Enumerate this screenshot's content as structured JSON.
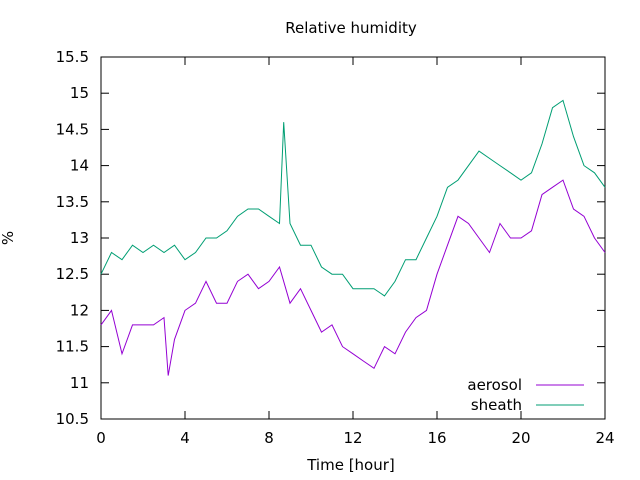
{
  "chart_data": {
    "type": "line",
    "title": "Relative humidity",
    "xlabel": "Time [hour]",
    "ylabel": "%",
    "xlim": [
      0,
      24
    ],
    "ylim": [
      10.5,
      15.5
    ],
    "x_ticks": [
      0,
      4,
      8,
      12,
      16,
      20,
      24
    ],
    "y_ticks": [
      10.5,
      11,
      11.5,
      12,
      12.5,
      13,
      13.5,
      14,
      14.5,
      15,
      15.5
    ],
    "grid": false,
    "legend_position": "bottom-right",
    "series": [
      {
        "name": "aerosol",
        "color": "#9400d3",
        "x": [
          0,
          0.5,
          1,
          1.5,
          2,
          2.5,
          3,
          3.2,
          3.5,
          4,
          4.5,
          5,
          5.5,
          6,
          6.5,
          7,
          7.5,
          8,
          8.5,
          9,
          9.5,
          10,
          10.5,
          11,
          11.5,
          12,
          12.5,
          13,
          13.5,
          14,
          14.5,
          15,
          15.5,
          16,
          16.5,
          17,
          17.5,
          18,
          18.5,
          19,
          19.5,
          20,
          20.5,
          21,
          21.5,
          22,
          22.5,
          23,
          23.5,
          24
        ],
        "y": [
          11.8,
          12.0,
          11.4,
          11.8,
          11.8,
          11.8,
          11.9,
          11.1,
          11.6,
          12.0,
          12.1,
          12.4,
          12.1,
          12.1,
          12.4,
          12.5,
          12.3,
          12.4,
          12.6,
          12.1,
          12.3,
          12.0,
          11.7,
          11.8,
          11.5,
          11.4,
          11.3,
          11.2,
          11.5,
          11.4,
          11.7,
          11.9,
          12.0,
          12.5,
          12.9,
          13.3,
          13.2,
          13.0,
          12.8,
          13.2,
          13.0,
          13.0,
          13.1,
          13.6,
          13.7,
          13.8,
          13.4,
          13.3,
          13.0,
          12.8
        ]
      },
      {
        "name": "sheath",
        "color": "#009e73",
        "x": [
          0,
          0.5,
          1,
          1.5,
          2,
          2.5,
          3,
          3.5,
          4,
          4.5,
          5,
          5.5,
          6,
          6.5,
          7,
          7.5,
          8,
          8.5,
          8.7,
          9,
          9.5,
          10,
          10.5,
          11,
          11.5,
          12,
          12.5,
          13,
          13.5,
          14,
          14.5,
          15,
          15.5,
          16,
          16.5,
          17,
          17.5,
          18,
          18.5,
          19,
          19.5,
          20,
          20.5,
          21,
          21.5,
          22,
          22.5,
          23,
          23.5,
          24
        ],
        "y": [
          12.5,
          12.8,
          12.7,
          12.9,
          12.8,
          12.9,
          12.8,
          12.9,
          12.7,
          12.8,
          13.0,
          13.0,
          13.1,
          13.3,
          13.4,
          13.4,
          13.3,
          13.2,
          14.6,
          13.2,
          12.9,
          12.9,
          12.6,
          12.5,
          12.5,
          12.3,
          12.3,
          12.3,
          12.2,
          12.4,
          12.7,
          12.7,
          13.0,
          13.3,
          13.7,
          13.8,
          14.0,
          14.2,
          14.1,
          14.0,
          13.9,
          13.8,
          13.9,
          14.3,
          14.8,
          14.9,
          14.4,
          14.0,
          13.9,
          13.7
        ]
      }
    ]
  }
}
